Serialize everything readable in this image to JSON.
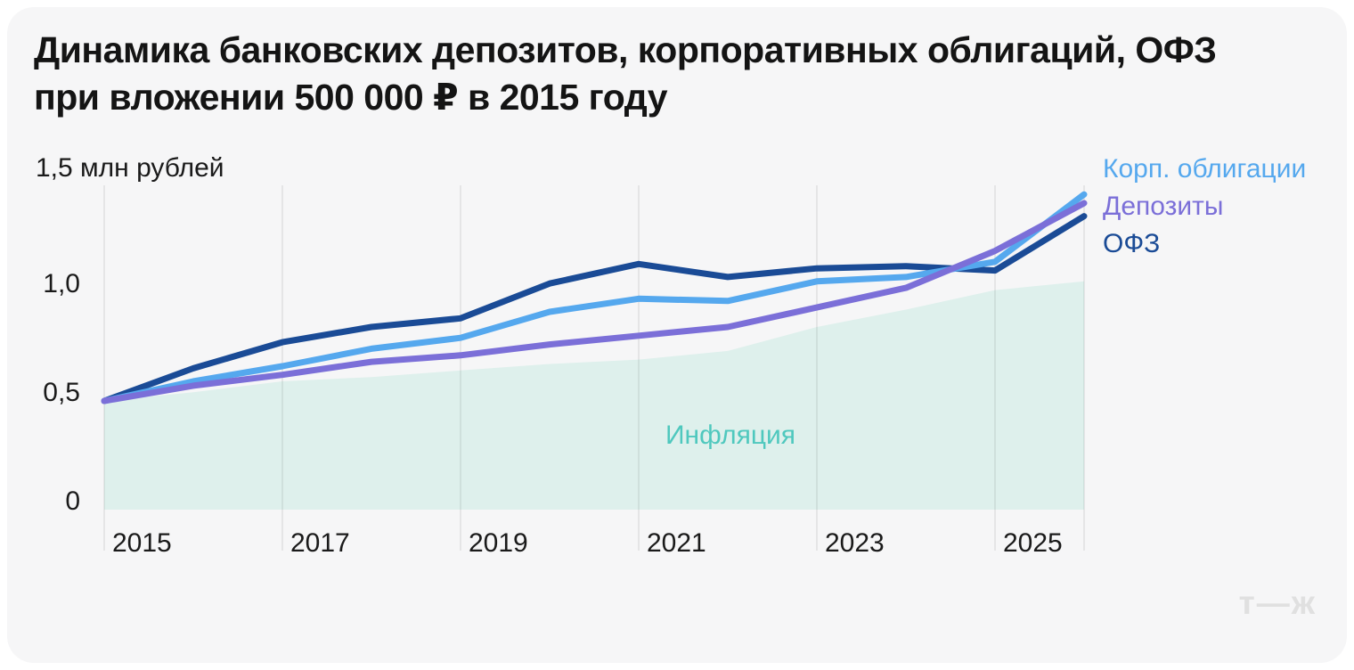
{
  "header": {
    "title_line1": "Динамика банковских депозитов, корпоративных облигаций, ОФЗ",
    "title_line2": "при вложении 500 000 ₽ в 2015 году"
  },
  "y_axis_top_label": "1,5 млн рублей",
  "logo": {
    "text": "т—ж"
  },
  "colors": {
    "page_bg": "#ffffff",
    "card_bg": "#f6f6f7",
    "title_text": "#141414",
    "axis_text": "#1a1a1a",
    "gridline": "rgba(20,20,20,0.07)",
    "logo": "#e0e0e0"
  },
  "chart_data": {
    "type": "line",
    "title": "Динамика банковских депозитов, корпоративных облигаций, ОФЗ при вложении 500 000 ₽ в 2015 году",
    "ylabel": "млн рублей",
    "y_axis_max_label": "1,5 млн рублей",
    "ylim": [
      0,
      1.5
    ],
    "y_ticks": [
      "0",
      "0,5",
      "1,0"
    ],
    "y_tick_values": [
      0,
      0.5,
      1.0
    ],
    "x_tick_labels": [
      "2015",
      "2017",
      "2019",
      "2021",
      "2023",
      "2025"
    ],
    "x": [
      2015,
      2016,
      2017,
      2018,
      2019,
      2020,
      2021,
      2022,
      2023,
      2024,
      2025,
      2026
    ],
    "grid": "vertical-only",
    "legend_position": "right-top",
    "series": [
      {
        "name": "ОФЗ",
        "color": "#1a4b96",
        "values": [
          0.5,
          0.65,
          0.77,
          0.84,
          0.88,
          1.04,
          1.13,
          1.07,
          1.11,
          1.12,
          1.1,
          1.35
        ]
      },
      {
        "name": "Корп. облигации",
        "color": "#55a8ee",
        "values": [
          0.5,
          0.59,
          0.66,
          0.74,
          0.79,
          0.91,
          0.97,
          0.96,
          1.05,
          1.07,
          1.14,
          1.45
        ]
      },
      {
        "name": "Депозиты",
        "color": "#7b6fd8",
        "values": [
          0.5,
          0.57,
          0.62,
          0.68,
          0.71,
          0.76,
          0.8,
          0.84,
          0.93,
          1.02,
          1.19,
          1.41
        ]
      }
    ],
    "area_series": {
      "name": "Инфляция",
      "fill": "#def0ec",
      "label_color": "#4fc8be",
      "values": [
        0.5,
        0.54,
        0.59,
        0.61,
        0.64,
        0.67,
        0.69,
        0.73,
        0.84,
        0.92,
        1.01,
        1.05
      ]
    },
    "legend_items": [
      {
        "label": "Корп. облигации",
        "color": "#55a8ee"
      },
      {
        "label": "Депозиты",
        "color": "#7b6fd8"
      },
      {
        "label": "ОФЗ",
        "color": "#1a4b96"
      }
    ]
  }
}
